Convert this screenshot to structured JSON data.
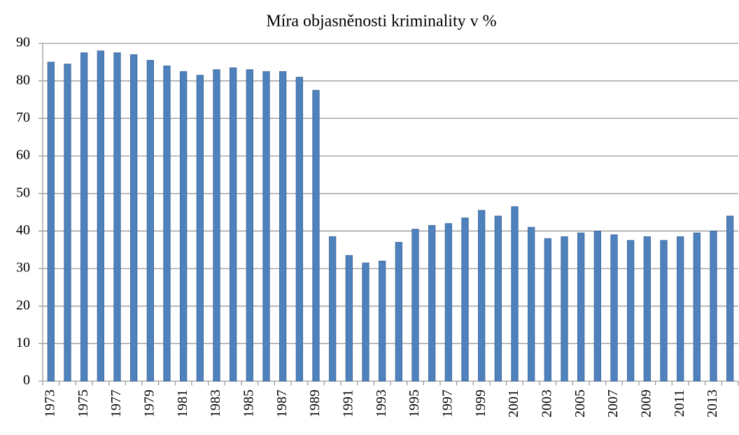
{
  "chart_data": {
    "type": "bar",
    "title": "Míra objasněnosti kriminality v %",
    "categories": [
      "1973",
      null,
      "1975",
      null,
      "1977",
      null,
      "1979",
      null,
      "1981",
      null,
      "1983",
      null,
      "1985",
      null,
      "1987",
      null,
      "1989",
      null,
      "1991",
      null,
      "1993",
      null,
      "1995",
      null,
      "1997",
      null,
      "1999",
      null,
      "2001",
      null,
      "2003",
      null,
      "2005",
      null,
      "2007",
      null,
      "2009",
      null,
      "2011",
      null,
      "2013",
      null
    ],
    "values": [
      85,
      84.5,
      87.5,
      88,
      87.5,
      87,
      85.5,
      84,
      82.5,
      81.5,
      83,
      83.5,
      83,
      82.5,
      82.5,
      81,
      77.5,
      38.5,
      33.5,
      31.5,
      32,
      37,
      40.5,
      41.5,
      42,
      43.5,
      45.5,
      44,
      46.5,
      41,
      38,
      38.5,
      39.5,
      40,
      39,
      37.5,
      38.5,
      37.5,
      38.5,
      39.5,
      40,
      44
    ],
    "color": "#4f81bd",
    "ylim": [
      0,
      90
    ],
    "yticks": [
      0,
      10,
      20,
      30,
      40,
      50,
      60,
      70,
      80,
      90
    ],
    "grid": true
  }
}
